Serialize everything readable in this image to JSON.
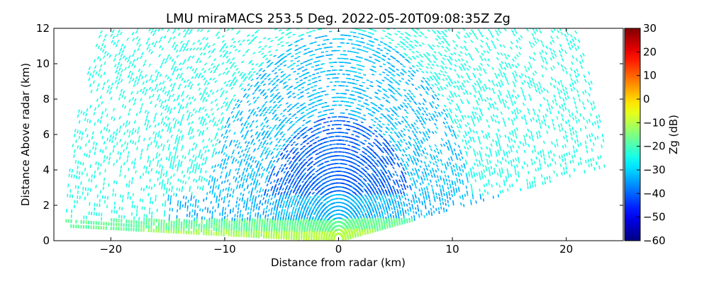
{
  "chart_data": {
    "type": "heatmap",
    "title": "LMU miraMACS 253.5 Deg. 2022-05-20T09:08:35Z  Zg",
    "xlabel": "Distance from radar (km)",
    "ylabel": "Distance Above radar  (km)",
    "xlim": [
      -25,
      25
    ],
    "ylim": [
      0,
      12
    ],
    "xticks": [
      "−20",
      "−10",
      "0",
      "10",
      "20"
    ],
    "xtick_values": [
      -20,
      -10,
      0,
      10,
      20
    ],
    "yticks": [
      "0",
      "2",
      "4",
      "6",
      "8",
      "10",
      "12"
    ],
    "ytick_values": [
      0,
      2,
      4,
      6,
      8,
      10,
      12
    ],
    "grid": false,
    "colorbar": {
      "label": "Zg (dB)",
      "range": [
        -60,
        30
      ],
      "ticks": [
        "−60",
        "−50",
        "−40",
        "−30",
        "−20",
        "−10",
        "0",
        "10",
        "20",
        "30"
      ],
      "tick_values": [
        -60,
        -50,
        -40,
        -30,
        -20,
        -10,
        0,
        10,
        20,
        30
      ],
      "colormap": "jet"
    },
    "scan": {
      "azimuth_deg": 253.5,
      "max_range_km": 24,
      "min_elevation_left_deg": 2,
      "min_elevation_right_deg": 10
    },
    "reflectivity_regions": [
      {
        "region": "surface layer 0-1 km",
        "zg_db_approx": -12
      },
      {
        "region": "boundary layer 1-2.5 km",
        "zg_db_approx": -30
      },
      {
        "region": "overhead 2-6 km",
        "zg_db_approx": -40
      },
      {
        "region": "upper far range",
        "zg_db_approx": -25
      }
    ]
  },
  "colors": {
    "background": "#ffffff",
    "axes": "#000000"
  }
}
